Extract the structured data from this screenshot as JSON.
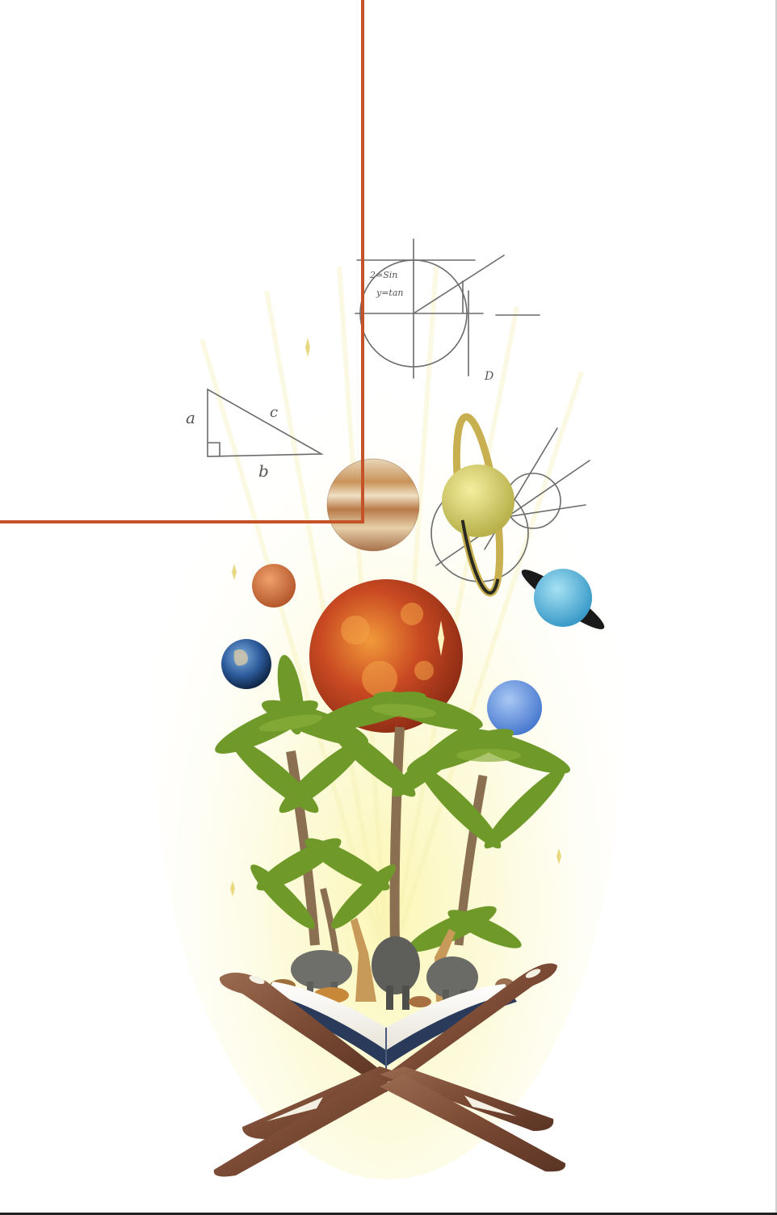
{
  "scene": {
    "subject": "open-book-on-wooden-stand",
    "elements": [
      "geometry-sketches",
      "planets",
      "sun",
      "palm-trees",
      "wild-animals",
      "open-book",
      "wooden-book-stand",
      "light-rays"
    ]
  },
  "colors": {
    "background": "#ffffff",
    "frame_line": "#c6522a",
    "light_glow": "#fbf8c8",
    "wood": "#7a4a34",
    "palm_green": "#6f9a2a",
    "sun": "#d0542a"
  },
  "sketch_labels": {
    "triangle_a": "a",
    "triangle_b": "b",
    "triangle_c": "c",
    "circle_eq_1": "2=Sin",
    "circle_eq_2": "y=tan",
    "circle_d": "D"
  }
}
